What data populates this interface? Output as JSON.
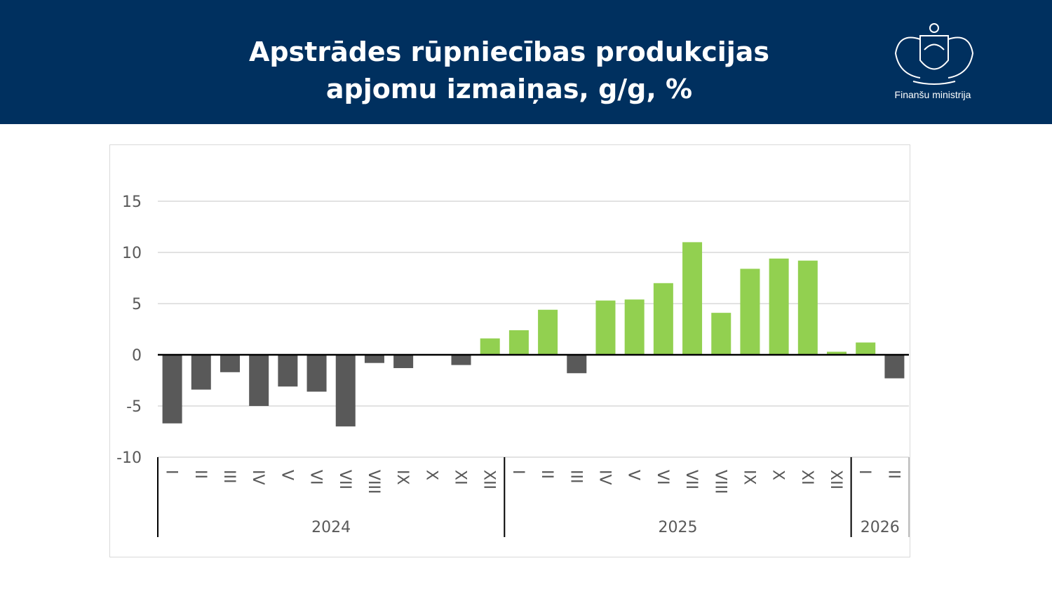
{
  "header": {
    "title_line1": "Apstrādes rūpniecības produkcijas",
    "title_line2": "apjomu izmaiņas, g/g, %",
    "ministry": "Finanšu ministrija"
  },
  "colors": {
    "header": "#00305f",
    "positive": "#92d050",
    "negative": "#595959"
  },
  "chart_data": {
    "type": "bar",
    "title": "",
    "ylim": [
      -10,
      15
    ],
    "yticks": [
      15,
      10,
      5,
      0,
      -5,
      -10
    ],
    "grid": true,
    "categories": [
      "I",
      "II",
      "III",
      "IV",
      "V",
      "VI",
      "VII",
      "VIII",
      "IX",
      "X",
      "XI",
      "XII",
      "I",
      "II",
      "III",
      "IV",
      "V",
      "VI",
      "VII",
      "VIII",
      "IX",
      "X",
      "XI",
      "XII",
      "I",
      "II"
    ],
    "groups": [
      {
        "label": "2024",
        "count": 12
      },
      {
        "label": "2025",
        "count": 12
      },
      {
        "label": "2026",
        "count": 2
      }
    ],
    "values": [
      -6.7,
      -3.4,
      -1.7,
      -5.0,
      -3.1,
      -3.6,
      -7.0,
      -0.8,
      -1.3,
      0.0,
      -1.0,
      1.6,
      2.4,
      4.4,
      -1.8,
      5.3,
      5.4,
      7.0,
      11.0,
      4.1,
      8.4,
      9.4,
      9.2,
      0.3,
      1.2,
      -2.3
    ]
  }
}
